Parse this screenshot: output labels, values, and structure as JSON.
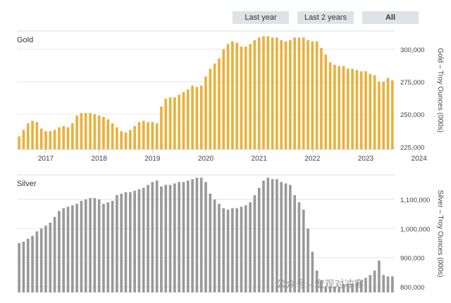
{
  "range_buttons": [
    {
      "label": "Last year",
      "active": false
    },
    {
      "label": "Last 2 years",
      "active": false
    },
    {
      "label": "All",
      "active": true
    }
  ],
  "watermark": "公众号 · 宏观对冲客",
  "colors": {
    "gold": "#e8b13c",
    "silver": "#999999",
    "grid": "#e6e6e6"
  },
  "chart_data": [
    {
      "type": "bar",
      "title": "Gold",
      "ylabel": "Gold – Troy Ounces (000s)",
      "ylim": [
        223000,
        314000
      ],
      "yticks": [
        {
          "value": 225000,
          "label": "225,000"
        },
        {
          "value": 250000,
          "label": "250,000"
        },
        {
          "value": 275000,
          "label": "275,000"
        },
        {
          "value": 300000,
          "label": "300,000"
        }
      ],
      "xticks": [
        {
          "index": 6,
          "label": "2017"
        },
        {
          "index": 18,
          "label": "2018"
        },
        {
          "index": 30,
          "label": "2019"
        },
        {
          "index": 42,
          "label": "2020"
        },
        {
          "index": 54,
          "label": "2021"
        },
        {
          "index": 66,
          "label": "2022"
        },
        {
          "index": 78,
          "label": "2023"
        },
        {
          "index": 90,
          "label": "2024"
        }
      ],
      "grid": true,
      "values": [
        233000,
        238000,
        243000,
        245000,
        244000,
        239000,
        237000,
        237000,
        238000,
        240000,
        241000,
        240000,
        243000,
        249000,
        251000,
        251000,
        251000,
        250000,
        249000,
        248000,
        246000,
        243000,
        240000,
        237000,
        236000,
        238000,
        241000,
        244000,
        245000,
        244000,
        244000,
        243000,
        256000,
        262000,
        263000,
        263000,
        265000,
        267000,
        269000,
        272000,
        271000,
        272000,
        279000,
        285000,
        289000,
        293000,
        300000,
        304000,
        306000,
        305000,
        302000,
        302000,
        304000,
        307000,
        309000,
        310000,
        310000,
        309000,
        309000,
        307000,
        306000,
        307000,
        309000,
        309000,
        309000,
        307000,
        306000,
        306000,
        301000,
        296000,
        290000,
        288000,
        287000,
        287000,
        285000,
        285000,
        284000,
        283000,
        283000,
        281000,
        280000,
        275000,
        275000,
        278000,
        276000
      ]
    },
    {
      "type": "bar",
      "title": "Silver",
      "ylabel": "Silver – Troy Ounces (000s)",
      "ylim": [
        780000,
        1185000
      ],
      "yticks": [
        {
          "value": 800000,
          "label": "800,000"
        },
        {
          "value": 900000,
          "label": "900,000"
        },
        {
          "value": 1000000,
          "label": "1,000,000"
        },
        {
          "value": 1100000,
          "label": "1,100,000"
        }
      ],
      "grid": true,
      "values": [
        950000,
        955000,
        965000,
        975000,
        990000,
        1000000,
        1010000,
        1020000,
        1040000,
        1060000,
        1070000,
        1075000,
        1080000,
        1085000,
        1095000,
        1100000,
        1105000,
        1105000,
        1100000,
        1085000,
        1090000,
        1095000,
        1115000,
        1120000,
        1125000,
        1125000,
        1130000,
        1135000,
        1140000,
        1150000,
        1160000,
        1165000,
        1145000,
        1150000,
        1150000,
        1155000,
        1160000,
        1160000,
        1165000,
        1170000,
        1175000,
        1175000,
        1160000,
        1120000,
        1100000,
        1085000,
        1070000,
        1065000,
        1070000,
        1070000,
        1075000,
        1080000,
        1090000,
        1115000,
        1140000,
        1165000,
        1175000,
        1170000,
        1170000,
        1160000,
        1155000,
        1150000,
        1115000,
        1090000,
        1065000,
        1000000,
        920000,
        855000,
        820000,
        800000,
        800000,
        800000,
        800000,
        810000,
        810000,
        810000,
        815000,
        820000,
        830000,
        840000,
        855000,
        890000,
        840000,
        835000,
        835000
      ]
    }
  ]
}
